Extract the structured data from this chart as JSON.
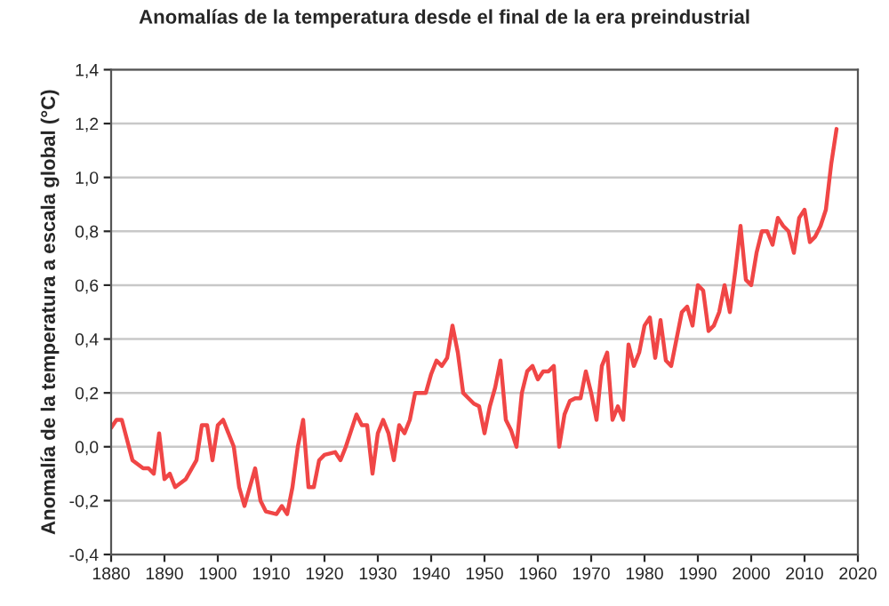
{
  "chart_data": {
    "type": "line",
    "title": "Anomalías de la temperatura desde el final de la era preindustrial",
    "ylabel": "Anomalía de la temperatura a escala global (°C)",
    "xlim": [
      1880,
      2020
    ],
    "xticks": [
      1880,
      1890,
      1900,
      1910,
      1920,
      1930,
      1940,
      1950,
      1960,
      1970,
      1980,
      1990,
      2000,
      2010,
      2020
    ],
    "ylim": [
      -0.4,
      1.4
    ],
    "yticks": [
      {
        "value": -0.4,
        "label": "-0,4"
      },
      {
        "value": -0.2,
        "label": "-0,2"
      },
      {
        "value": 0.0,
        "label": "0,0"
      },
      {
        "value": 0.2,
        "label": "0,2"
      },
      {
        "value": 0.4,
        "label": "0,4"
      },
      {
        "value": 0.6,
        "label": "0,6"
      },
      {
        "value": 0.8,
        "label": "0,8"
      },
      {
        "value": 1.0,
        "label": "1,0"
      },
      {
        "value": 1.2,
        "label": "1,2"
      },
      {
        "value": 1.4,
        "label": "1,4"
      }
    ],
    "grid": "y",
    "line_style": "solid",
    "marker": "none",
    "series": [
      {
        "color": "#f04646",
        "x": [
          1880,
          1881,
          1882,
          1884,
          1886,
          1887,
          1888,
          1889,
          1890,
          1891,
          1892,
          1894,
          1896,
          1897,
          1898,
          1899,
          1900,
          1901,
          1903,
          1904,
          1905,
          1907,
          1908,
          1909,
          1911,
          1912,
          1913,
          1914,
          1915,
          1916,
          1917,
          1918,
          1919,
          1920,
          1922,
          1923,
          1924,
          1926,
          1927,
          1928,
          1929,
          1930,
          1931,
          1932,
          1933,
          1934,
          1935,
          1936,
          1937,
          1938,
          1939,
          1940,
          1941,
          1942,
          1943,
          1944,
          1945,
          1946,
          1947,
          1948,
          1949,
          1950,
          1951,
          1952,
          1953,
          1954,
          1955,
          1956,
          1957,
          1958,
          1959,
          1960,
          1961,
          1962,
          1963,
          1964,
          1965,
          1966,
          1967,
          1968,
          1969,
          1970,
          1971,
          1972,
          1973,
          1974,
          1975,
          1976,
          1977,
          1978,
          1979,
          1980,
          1981,
          1982,
          1983,
          1984,
          1985,
          1986,
          1987,
          1988,
          1989,
          1990,
          1991,
          1992,
          1993,
          1994,
          1995,
          1996,
          1997,
          1998,
          1999,
          2000,
          2001,
          2002,
          2003,
          2004,
          2005,
          2006,
          2007,
          2008,
          2009,
          2010,
          2011,
          2012,
          2013,
          2014,
          2015,
          2016
        ],
        "values": [
          0.07,
          0.1,
          0.1,
          -0.05,
          -0.08,
          -0.08,
          -0.1,
          0.05,
          -0.12,
          -0.1,
          -0.15,
          -0.12,
          -0.05,
          0.08,
          0.08,
          -0.05,
          0.08,
          0.1,
          0.0,
          -0.15,
          -0.22,
          -0.08,
          -0.2,
          -0.24,
          -0.25,
          -0.22,
          -0.25,
          -0.15,
          0.0,
          0.1,
          -0.15,
          -0.15,
          -0.05,
          -0.03,
          -0.02,
          -0.05,
          0.0,
          0.12,
          0.08,
          0.08,
          -0.1,
          0.05,
          0.1,
          0.05,
          -0.05,
          0.08,
          0.05,
          0.1,
          0.2,
          0.2,
          0.2,
          0.27,
          0.32,
          0.3,
          0.33,
          0.45,
          0.35,
          0.2,
          0.18,
          0.16,
          0.15,
          0.05,
          0.15,
          0.22,
          0.32,
          0.1,
          0.06,
          0.0,
          0.2,
          0.28,
          0.3,
          0.25,
          0.28,
          0.28,
          0.3,
          0.0,
          0.12,
          0.17,
          0.18,
          0.18,
          0.28,
          0.2,
          0.1,
          0.3,
          0.35,
          0.1,
          0.15,
          0.1,
          0.38,
          0.3,
          0.35,
          0.45,
          0.48,
          0.33,
          0.47,
          0.32,
          0.3,
          0.4,
          0.5,
          0.52,
          0.45,
          0.6,
          0.58,
          0.43,
          0.45,
          0.5,
          0.6,
          0.5,
          0.65,
          0.82,
          0.62,
          0.6,
          0.72,
          0.8,
          0.8,
          0.75,
          0.85,
          0.82,
          0.8,
          0.72,
          0.85,
          0.88,
          0.76,
          0.78,
          0.82,
          0.88,
          1.05,
          1.18
        ]
      }
    ]
  }
}
